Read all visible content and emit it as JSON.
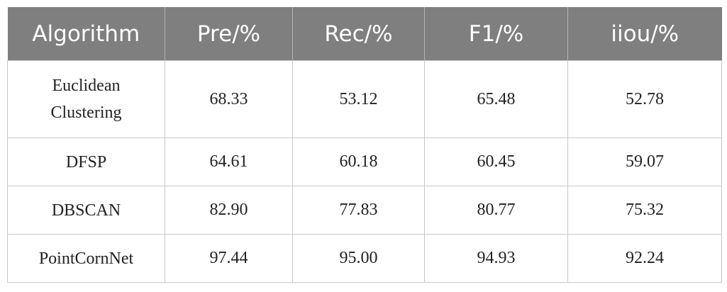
{
  "table": {
    "header": [
      "Algorithm",
      "Pre/%",
      "Rec/%",
      "F1/%",
      "iiou/%"
    ],
    "rows": [
      [
        "Euclidean Clustering",
        "68.33",
        "53.12",
        "65.48",
        "52.78"
      ],
      [
        "DFSP",
        "64.61",
        "60.18",
        "60.45",
        "59.07"
      ],
      [
        "DBSCAN",
        "82.90",
        "77.83",
        "80.77",
        "75.32"
      ],
      [
        "PointCornNet",
        "97.44",
        "95.00",
        "94.93",
        "92.24"
      ]
    ]
  }
}
